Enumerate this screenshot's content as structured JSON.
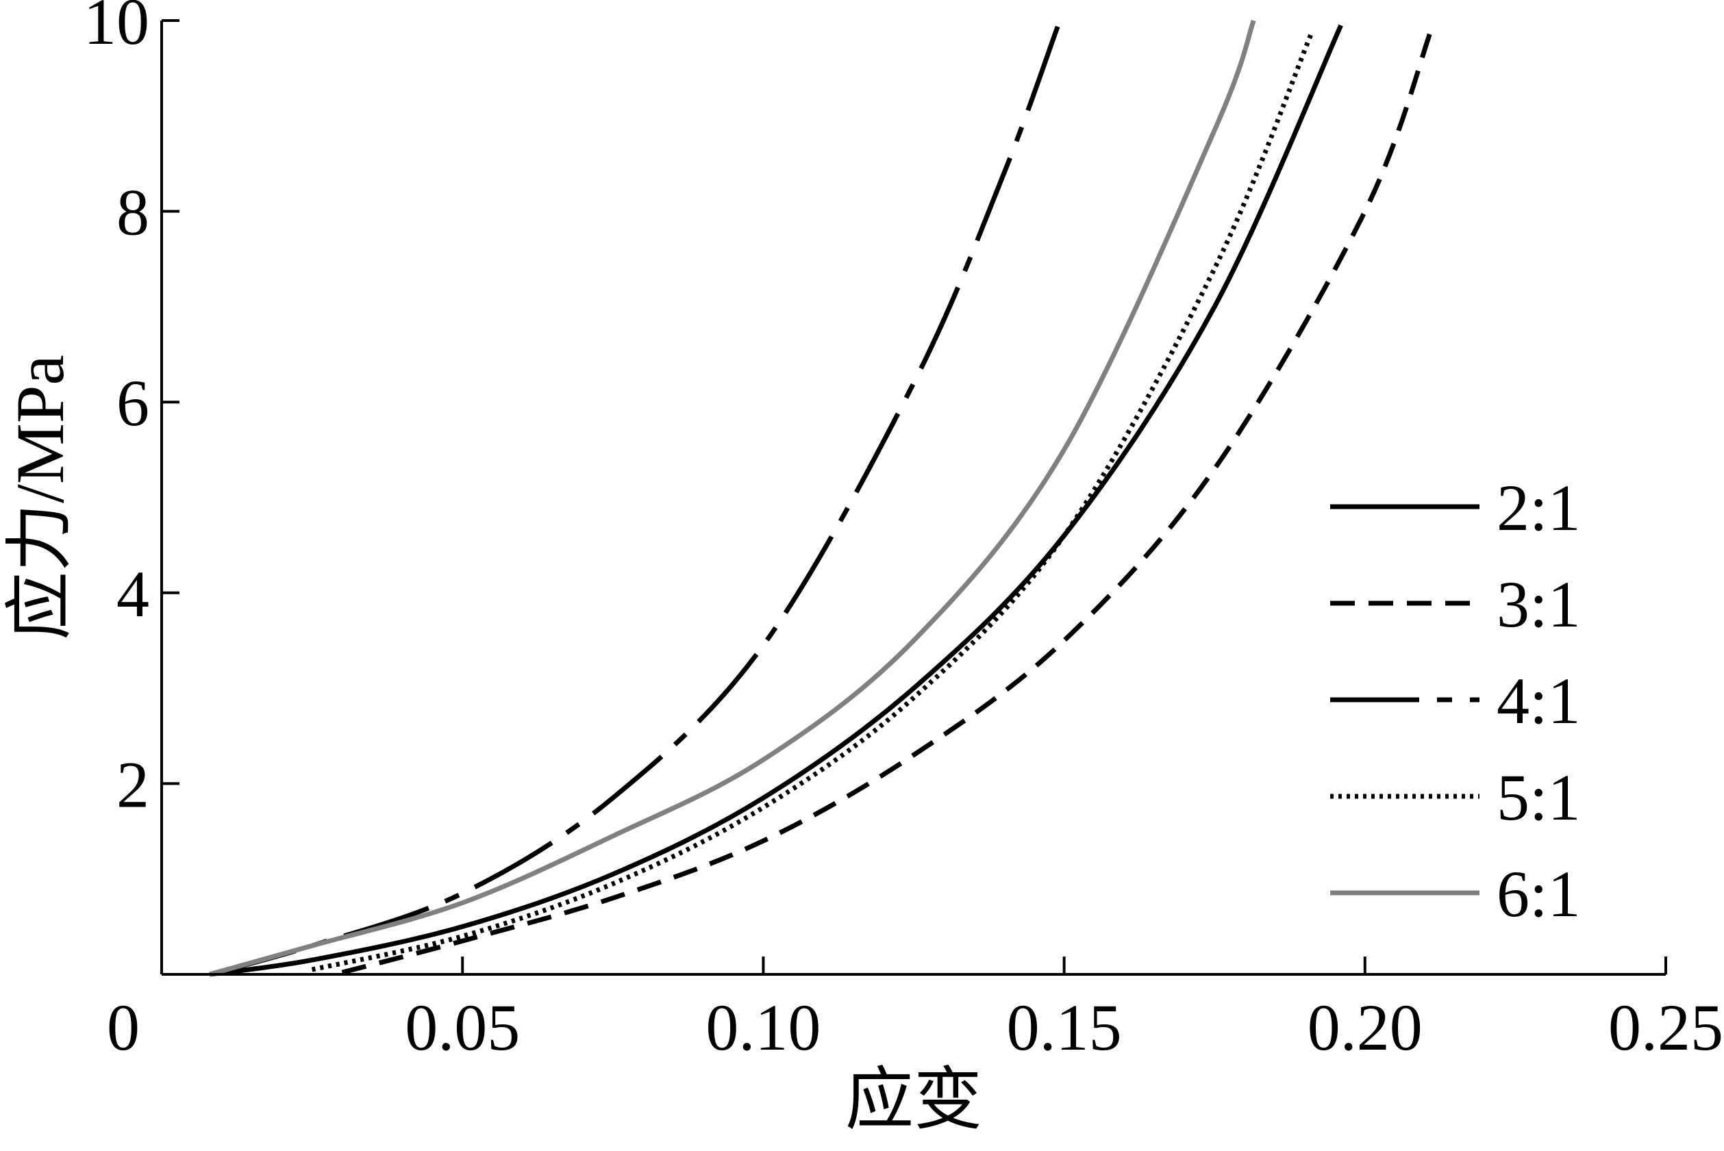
{
  "chart_data": {
    "type": "line",
    "xlabel": "应变",
    "ylabel": "应力/MPa",
    "xlim": [
      0,
      0.25
    ],
    "ylim": [
      0,
      10
    ],
    "xticks": [
      {
        "value": 0,
        "label": "0"
      },
      {
        "value": 0.05,
        "label": "0.05"
      },
      {
        "value": 0.1,
        "label": "0.10"
      },
      {
        "value": 0.15,
        "label": "0.15"
      },
      {
        "value": 0.2,
        "label": "0.20"
      },
      {
        "value": 0.25,
        "label": "0.25"
      }
    ],
    "yticks": [
      {
        "value": 2,
        "label": "2"
      },
      {
        "value": 4,
        "label": "4"
      },
      {
        "value": 6,
        "label": "6"
      },
      {
        "value": 8,
        "label": "8"
      },
      {
        "value": 10,
        "label": "10"
      }
    ],
    "grid": false,
    "legend_position": "right",
    "series": [
      {
        "name": "2:1",
        "color": "#000000",
        "dash": "solid",
        "x": [
          0.008,
          0.025,
          0.05,
          0.075,
          0.1,
          0.125,
          0.15,
          0.175,
          0.196
        ],
        "y": [
          0.0,
          0.15,
          0.5,
          1.05,
          1.85,
          3.0,
          4.6,
          7.0,
          9.95
        ]
      },
      {
        "name": "3:1",
        "color": "#000000",
        "dash": "dashed",
        "x": [
          0.03,
          0.05,
          0.075,
          0.1,
          0.125,
          0.15,
          0.175,
          0.2,
          0.211
        ],
        "y": [
          0.02,
          0.35,
          0.8,
          1.4,
          2.3,
          3.5,
          5.3,
          8.0,
          9.9
        ]
      },
      {
        "name": "4:1",
        "color": "#000000",
        "dash": "dashdot",
        "x": [
          0.008,
          0.025,
          0.05,
          0.075,
          0.1,
          0.125,
          0.14,
          0.149
        ],
        "y": [
          0.0,
          0.3,
          0.85,
          1.85,
          3.45,
          6.2,
          8.4,
          9.95
        ]
      },
      {
        "name": "5:1",
        "color": "#000000",
        "dash": "dotted",
        "x": [
          0.025,
          0.05,
          0.075,
          0.1,
          0.125,
          0.15,
          0.175,
          0.191
        ],
        "y": [
          0.05,
          0.4,
          0.95,
          1.75,
          2.9,
          4.6,
          7.4,
          9.85
        ]
      },
      {
        "name": "6:1",
        "color": "#808080",
        "dash": "solid",
        "x": [
          0.008,
          0.025,
          0.05,
          0.075,
          0.1,
          0.125,
          0.15,
          0.175,
          0.1815
        ],
        "y": [
          0.0,
          0.3,
          0.75,
          1.45,
          2.25,
          3.5,
          5.5,
          8.85,
          10.0
        ]
      }
    ]
  }
}
